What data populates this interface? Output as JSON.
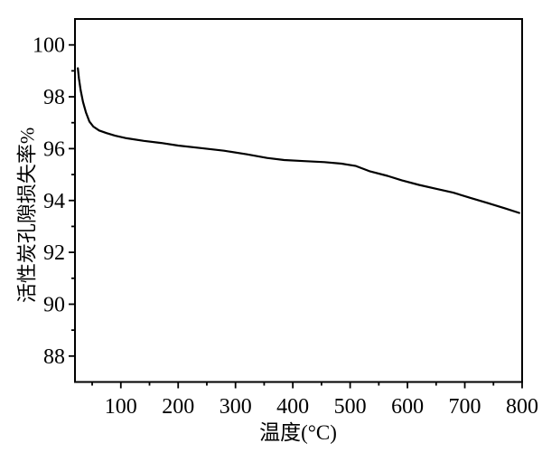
{
  "figure": {
    "background": "#ffffff",
    "foreground": "#000000"
  },
  "chart_data": {
    "type": "line",
    "title": "",
    "xlabel": "温度(°C)",
    "ylabel": "活性炭孔隙损失率%",
    "xlim": [
      20,
      800
    ],
    "ylim": [
      87,
      101
    ],
    "x_major_ticks": [
      100,
      200,
      300,
      400,
      500,
      600,
      700,
      800
    ],
    "x_minor_ticks": [
      50,
      150,
      250,
      350,
      450,
      550,
      650,
      750
    ],
    "y_major_ticks": [
      88,
      90,
      92,
      94,
      96,
      98,
      100
    ],
    "y_minor_ticks": [
      89,
      91,
      93,
      95,
      97,
      99
    ],
    "grid": false,
    "legend": "none",
    "line_color": "#000000",
    "series": [
      {
        "points": [
          [
            25,
            99.1
          ],
          [
            27,
            98.7
          ],
          [
            30,
            98.25
          ],
          [
            34,
            97.8
          ],
          [
            39,
            97.4
          ],
          [
            45,
            97.05
          ],
          [
            52,
            96.85
          ],
          [
            62,
            96.7
          ],
          [
            75,
            96.6
          ],
          [
            90,
            96.5
          ],
          [
            110,
            96.4
          ],
          [
            140,
            96.3
          ],
          [
            170,
            96.22
          ],
          [
            200,
            96.12
          ],
          [
            240,
            96.02
          ],
          [
            280,
            95.92
          ],
          [
            320,
            95.78
          ],
          [
            355,
            95.64
          ],
          [
            385,
            95.56
          ],
          [
            420,
            95.52
          ],
          [
            455,
            95.48
          ],
          [
            485,
            95.42
          ],
          [
            510,
            95.33
          ],
          [
            535,
            95.12
          ],
          [
            565,
            94.95
          ],
          [
            590,
            94.78
          ],
          [
            620,
            94.6
          ],
          [
            650,
            94.45
          ],
          [
            680,
            94.3
          ],
          [
            710,
            94.1
          ],
          [
            740,
            93.9
          ],
          [
            770,
            93.7
          ],
          [
            795,
            93.52
          ]
        ]
      }
    ]
  }
}
